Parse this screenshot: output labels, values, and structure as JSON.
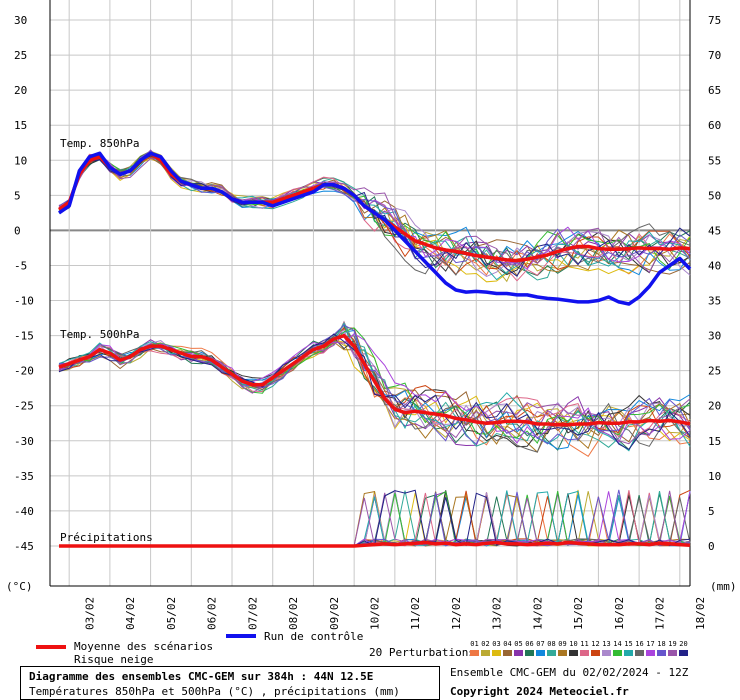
{
  "chart_data": {
    "type": "line",
    "title": "Diagramme des ensembles CMC-GEM sur 384h : 44N 12.5E",
    "subtitle": "Températures 850hPa et 500hPa (°C) , précipitations (mm)",
    "y_left_unit": "(°C)",
    "y_right_unit": "(mm)",
    "y_left_ticks": [
      30,
      25,
      20,
      15,
      10,
      5,
      0,
      -5,
      -10,
      -15,
      -20,
      -25,
      -30,
      -35,
      -40,
      -45
    ],
    "y_right_ticks": [
      75,
      70,
      65,
      60,
      55,
      50,
      45,
      40,
      35,
      30,
      25,
      20,
      15,
      10,
      5,
      0
    ],
    "ylim": [
      -50,
      30
    ],
    "x_tick_labels": [
      "03/02",
      "04/02",
      "05/02",
      "06/02",
      "07/02",
      "08/02",
      "09/02",
      "10/02",
      "11/02",
      "12/02",
      "13/02",
      "14/02",
      "15/02",
      "16/02",
      "17/02",
      "18/02"
    ],
    "x_step_hours": 6,
    "panel_labels": {
      "t850": "Temp. 850hPa",
      "t500": "Temp. 500hPa",
      "precip": "Précipitations"
    },
    "grid": true,
    "series": [
      {
        "name": "Moyenne des scénarios",
        "color": "#ee1111",
        "group": "t850",
        "values": [
          3,
          4,
          8,
          10,
          10.5,
          9,
          8,
          8.5,
          10,
          11,
          10,
          8,
          7,
          6.5,
          6,
          6,
          5.5,
          4.5,
          4,
          4,
          4,
          4,
          4.5,
          5,
          5.5,
          6,
          6.5,
          6.5,
          6,
          5,
          3.5,
          2.5,
          1.5,
          0.5,
          -0.5,
          -1.5,
          -2,
          -2.5,
          -2.8,
          -3,
          -3.3,
          -3.6,
          -3.8,
          -4,
          -4.2,
          -4.3,
          -4.1,
          -3.8,
          -3.5,
          -3,
          -2.6,
          -2.3,
          -2.3,
          -2.6,
          -2.7,
          -2.7,
          -2.6,
          -2.5,
          -2.6,
          -2.6,
          -2.7,
          -2.5,
          -2.6
        ]
      },
      {
        "name": "Run de contrôle",
        "color": "#1111ee",
        "group": "t850",
        "values": [
          2.5,
          3.5,
          8.5,
          10.5,
          11,
          9,
          8,
          8.5,
          10,
          11,
          10.5,
          8.5,
          7,
          6.5,
          6,
          6,
          5.5,
          4.5,
          4,
          4,
          4,
          3.5,
          4,
          4.5,
          5,
          5.5,
          6.5,
          6.5,
          6,
          5,
          3.5,
          2.5,
          1.5,
          0,
          -1.5,
          -3,
          -4.5,
          -6,
          -7.5,
          -8.5,
          -8.8,
          -8.7,
          -8.8,
          -9,
          -9,
          -9.2,
          -9.2,
          -9.5,
          -9.7,
          -9.8,
          -10,
          -10.2,
          -10.2,
          -10,
          -9.5,
          -10.2,
          -10.5,
          -9.5,
          -8,
          -6,
          -5,
          -4,
          -5.5
        ]
      },
      {
        "name": "Moyenne des scénarios",
        "color": "#ee1111",
        "group": "t500",
        "values": [
          -19.5,
          -19,
          -18.5,
          -18,
          -17,
          -17.5,
          -18.5,
          -18,
          -17,
          -16.5,
          -16.5,
          -17,
          -17.5,
          -18,
          -18,
          -18.5,
          -19.5,
          -20.5,
          -21.5,
          -22,
          -22,
          -21,
          -20,
          -19,
          -18,
          -17,
          -16.5,
          -15.5,
          -15,
          -16.5,
          -19,
          -21.5,
          -24,
          -25.5,
          -26,
          -25.8,
          -26,
          -26.2,
          -26.4,
          -26.8,
          -27,
          -27.3,
          -27.5,
          -27.4,
          -27.2,
          -27.2,
          -27.3,
          -27.6,
          -27.6,
          -27.7,
          -27.7,
          -27.6,
          -27.6,
          -27.4,
          -27.5,
          -27.5,
          -27.3,
          -27.3,
          -27.1,
          -27.2,
          -27.1,
          -27.3,
          -27.6
        ]
      },
      {
        "name": "Moyenne des scénarios",
        "color": "#ee1111",
        "group": "precip",
        "values": [
          0,
          0,
          0,
          0,
          0,
          0,
          0,
          0,
          0,
          0,
          0,
          0,
          0,
          0,
          0,
          0,
          0,
          0,
          0,
          0,
          0,
          0,
          0,
          0,
          0,
          0,
          0,
          0,
          0,
          0,
          0.1,
          0.2,
          0.3,
          0.2,
          0.3,
          0.4,
          0.5,
          0.3,
          0.4,
          0.2,
          0.3,
          0.2,
          0.4,
          0.5,
          0.3,
          0.3,
          0.2,
          0.3,
          0.4,
          0.3,
          0.5,
          0.4,
          0.3,
          0.2,
          0.2,
          0.2,
          0.3,
          0.3,
          0.2,
          0.4,
          0.3,
          0.2,
          0.1
        ]
      }
    ],
    "perturbations": {
      "count": 20,
      "labels": [
        "01",
        "02",
        "03",
        "04",
        "05",
        "06",
        "07",
        "08",
        "09",
        "10",
        "11",
        "12",
        "13",
        "14",
        "15",
        "16",
        "17",
        "18",
        "19",
        "20"
      ],
      "colors": [
        "#ee7744",
        "#bbaa33",
        "#ddbb11",
        "#996633",
        "#8833aa",
        "#227755",
        "#1188dd",
        "#33aa99",
        "#aa7722",
        "#333333",
        "#dd6688",
        "#cc4411",
        "#aa88cc",
        "#33bb33",
        "#22aaaa",
        "#666666",
        "#aa44dd",
        "#6655cc",
        "#9955aa",
        "#222288"
      ]
    }
  },
  "legend": {
    "mean_label": "Moyenne des scénarios",
    "snow_label": "Risque neige",
    "control_label": "Run de contrôle",
    "perturbations_label": "20 Perturbations"
  },
  "footer": {
    "title": "Diagramme des ensembles CMC-GEM sur 384h : 44N 12.5E",
    "subtitle": "Températures 850hPa et 500hPa (°C) , précipitations (mm)",
    "run_info": "Ensemble CMC-GEM du 02/02/2024 - 12Z",
    "copyright": "Copyright 2024 Meteociel.fr"
  }
}
